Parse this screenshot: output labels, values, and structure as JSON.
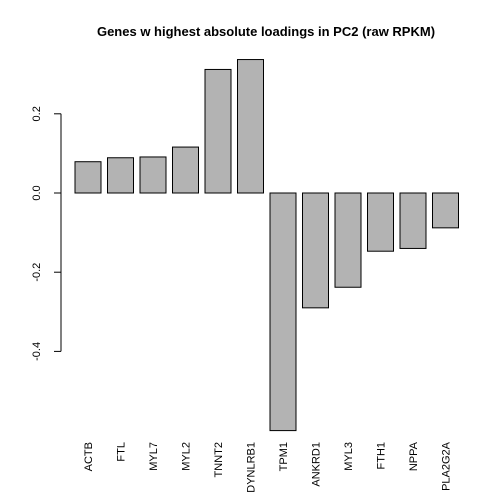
{
  "chart_data": {
    "type": "bar",
    "title": "Genes w highest absolute loadings in PC2 (raw RPKM)",
    "xlabel": "",
    "ylabel": "",
    "categories": [
      "ACTB",
      "FTL",
      "MYL7",
      "MYL2",
      "TNNT2",
      "DYNLRB1",
      "TPM1",
      "ANKRD1",
      "MYL3",
      "FTH1",
      "NPPA",
      "PLA2G2A"
    ],
    "values": [
      0.079,
      0.089,
      0.091,
      0.116,
      0.312,
      0.337,
      -0.6,
      -0.29,
      -0.238,
      -0.147,
      -0.14,
      -0.088
    ],
    "yticks": [
      -0.4,
      -0.2,
      0.0,
      0.2
    ],
    "ytick_labels": [
      "-0.4",
      "-0.2",
      "0.0",
      "0.2"
    ],
    "ylim": [
      -0.6,
      0.35
    ],
    "bar_color": "#b3b3b3",
    "grid": false,
    "legend": "none"
  }
}
